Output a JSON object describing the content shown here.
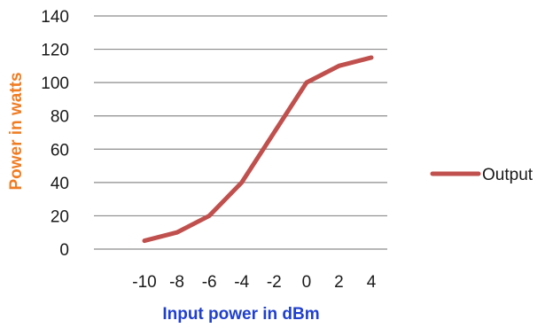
{
  "chart_data": {
    "type": "line",
    "x": [
      -10,
      -8,
      -6,
      -4,
      -2,
      0,
      2,
      4
    ],
    "x_tick_labels": [
      "-10",
      "-8",
      "-6",
      "-4",
      "-2",
      "0",
      "2",
      "4"
    ],
    "series": [
      {
        "name": "Output",
        "values": [
          5,
          10,
          20,
          40,
          70,
          100,
          110,
          115
        ]
      }
    ],
    "xlabel": "Input power in dBm",
    "ylabel": "Power in watts",
    "ylim": [
      0,
      140
    ],
    "y_ticks": [
      0,
      20,
      40,
      60,
      80,
      100,
      120,
      140
    ],
    "grid": "horizontal",
    "legend_position": "right",
    "colors": {
      "series": "#c0504d",
      "ylabel": "#f07c22",
      "xlabel": "#1f3fcf",
      "grid": "#8c8c8c"
    }
  }
}
